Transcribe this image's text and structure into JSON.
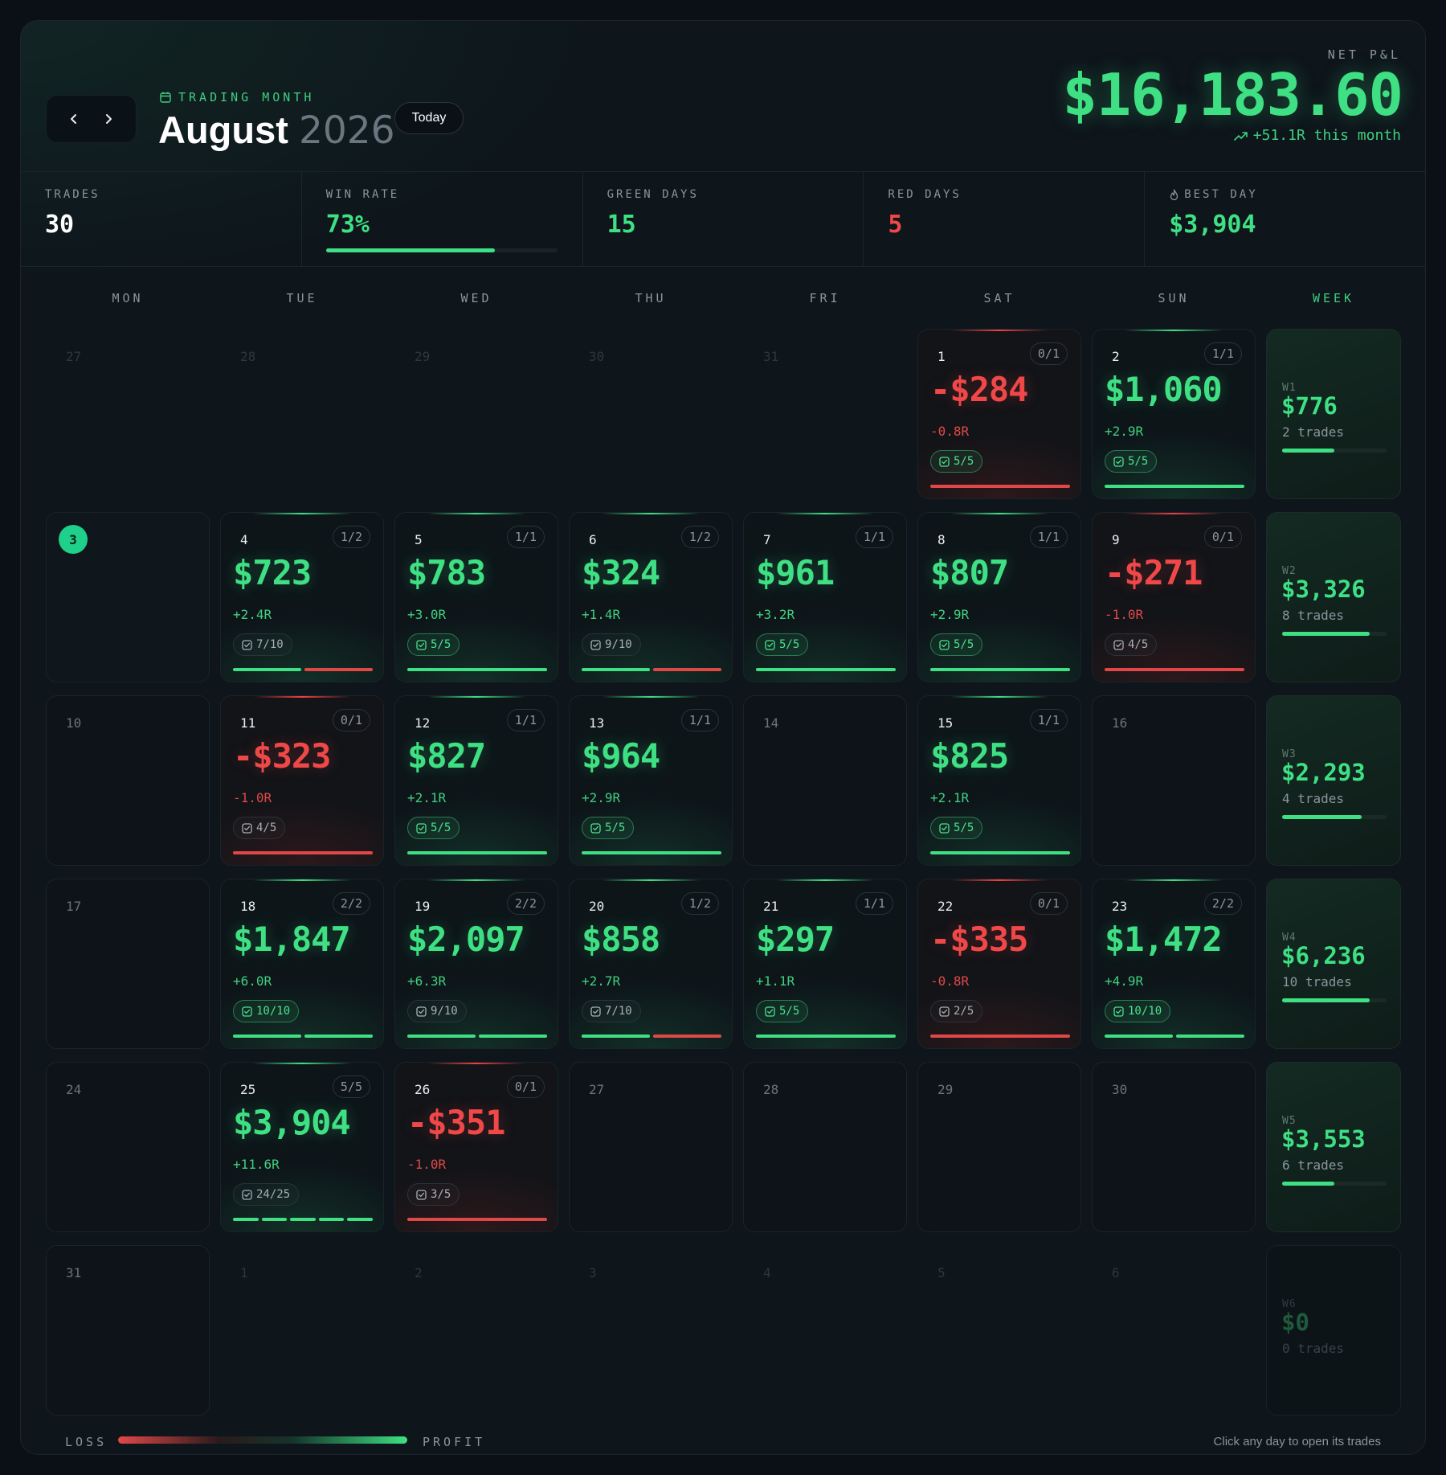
{
  "header": {
    "eyebrow": "TRADING MONTH",
    "month": "August",
    "year": "2026",
    "today_label": "Today",
    "net_label": "NET P&L",
    "net_value": "$16,183.60",
    "net_sub": "+51.1R this month"
  },
  "stats": [
    {
      "label": "TRADES",
      "value": "30",
      "color": "#ffffff"
    },
    {
      "label": "WIN RATE",
      "value": "73%",
      "color": "#3ee083",
      "bar_fraction": 0.73
    },
    {
      "label": "GREEN DAYS",
      "value": "15",
      "color": "#3ee083"
    },
    {
      "label": "RED DAYS",
      "value": "5",
      "color": "#f04848"
    },
    {
      "label": "BEST DAY",
      "value": "$3,904",
      "color": "#3ee083",
      "icon": "flame-icon"
    }
  ],
  "weekdays": [
    "MON",
    "TUE",
    "WED",
    "THU",
    "FRI",
    "SAT",
    "SUN"
  ],
  "week_header": "WEEK",
  "colors": {
    "profit": "#3ee083",
    "loss": "#f04848",
    "accent_today": "#1fd08a"
  },
  "rows": [
    {
      "days": [
        {
          "day": "27",
          "state": "out"
        },
        {
          "day": "28",
          "state": "out"
        },
        {
          "day": "29",
          "state": "out"
        },
        {
          "day": "30",
          "state": "out"
        },
        {
          "day": "31",
          "state": "out"
        },
        {
          "day": "1",
          "state": "loss",
          "ratio": "0/1",
          "pnl": "-$284",
          "r": "-0.8R",
          "chip": "5/5",
          "chip_full": true,
          "segs": [
            "l"
          ]
        },
        {
          "day": "2",
          "state": "win",
          "ratio": "1/1",
          "pnl": "$1,060",
          "r": "+2.9R",
          "chip": "5/5",
          "chip_full": true,
          "segs": [
            "w"
          ]
        }
      ],
      "week": {
        "label": "W1",
        "value": "$776",
        "trades": "2 trades",
        "fraction": 0.5
      }
    },
    {
      "days": [
        {
          "day": "3",
          "state": "today"
        },
        {
          "day": "4",
          "state": "win",
          "ratio": "1/2",
          "pnl": "$723",
          "r": "+2.4R",
          "chip": "7/10",
          "chip_full": false,
          "segs": [
            "w",
            "l"
          ]
        },
        {
          "day": "5",
          "state": "win",
          "ratio": "1/1",
          "pnl": "$783",
          "r": "+3.0R",
          "chip": "5/5",
          "chip_full": true,
          "segs": [
            "w"
          ]
        },
        {
          "day": "6",
          "state": "win",
          "ratio": "1/2",
          "pnl": "$324",
          "r": "+1.4R",
          "chip": "9/10",
          "chip_full": false,
          "segs": [
            "w",
            "l"
          ]
        },
        {
          "day": "7",
          "state": "win",
          "ratio": "1/1",
          "pnl": "$961",
          "r": "+3.2R",
          "chip": "5/5",
          "chip_full": true,
          "segs": [
            "w"
          ]
        },
        {
          "day": "8",
          "state": "win",
          "ratio": "1/1",
          "pnl": "$807",
          "r": "+2.9R",
          "chip": "5/5",
          "chip_full": true,
          "segs": [
            "w"
          ]
        },
        {
          "day": "9",
          "state": "loss",
          "ratio": "0/1",
          "pnl": "-$271",
          "r": "-1.0R",
          "chip": "4/5",
          "chip_full": false,
          "segs": [
            "l"
          ]
        }
      ],
      "week": {
        "label": "W2",
        "value": "$3,326",
        "trades": "8 trades",
        "fraction": 0.84
      }
    },
    {
      "days": [
        {
          "day": "10",
          "state": "empty"
        },
        {
          "day": "11",
          "state": "loss",
          "ratio": "0/1",
          "pnl": "-$323",
          "r": "-1.0R",
          "chip": "4/5",
          "chip_full": false,
          "segs": [
            "l"
          ]
        },
        {
          "day": "12",
          "state": "win",
          "ratio": "1/1",
          "pnl": "$827",
          "r": "+2.1R",
          "chip": "5/5",
          "chip_full": true,
          "segs": [
            "w"
          ]
        },
        {
          "day": "13",
          "state": "win",
          "ratio": "1/1",
          "pnl": "$964",
          "r": "+2.9R",
          "chip": "5/5",
          "chip_full": true,
          "segs": [
            "w"
          ]
        },
        {
          "day": "14",
          "state": "empty"
        },
        {
          "day": "15",
          "state": "win",
          "ratio": "1/1",
          "pnl": "$825",
          "r": "+2.1R",
          "chip": "5/5",
          "chip_full": true,
          "segs": [
            "w"
          ]
        },
        {
          "day": "16",
          "state": "empty"
        }
      ],
      "week": {
        "label": "W3",
        "value": "$2,293",
        "trades": "4 trades",
        "fraction": 0.76
      }
    },
    {
      "days": [
        {
          "day": "17",
          "state": "empty"
        },
        {
          "day": "18",
          "state": "win",
          "ratio": "2/2",
          "pnl": "$1,847",
          "r": "+6.0R",
          "chip": "10/10",
          "chip_full": true,
          "segs": [
            "w",
            "w"
          ]
        },
        {
          "day": "19",
          "state": "win",
          "ratio": "2/2",
          "pnl": "$2,097",
          "r": "+6.3R",
          "chip": "9/10",
          "chip_full": false,
          "segs": [
            "w",
            "w"
          ]
        },
        {
          "day": "20",
          "state": "win",
          "ratio": "1/2",
          "pnl": "$858",
          "r": "+2.7R",
          "chip": "7/10",
          "chip_full": false,
          "segs": [
            "w",
            "l"
          ]
        },
        {
          "day": "21",
          "state": "win",
          "ratio": "1/1",
          "pnl": "$297",
          "r": "+1.1R",
          "chip": "5/5",
          "chip_full": true,
          "segs": [
            "w"
          ]
        },
        {
          "day": "22",
          "state": "loss",
          "ratio": "0/1",
          "pnl": "-$335",
          "r": "-0.8R",
          "chip": "2/5",
          "chip_full": false,
          "segs": [
            "l"
          ]
        },
        {
          "day": "23",
          "state": "win",
          "ratio": "2/2",
          "pnl": "$1,472",
          "r": "+4.9R",
          "chip": "10/10",
          "chip_full": true,
          "segs": [
            "w",
            "w"
          ]
        }
      ],
      "week": {
        "label": "W4",
        "value": "$6,236",
        "trades": "10 trades",
        "fraction": 0.84
      }
    },
    {
      "days": [
        {
          "day": "24",
          "state": "empty"
        },
        {
          "day": "25",
          "state": "win",
          "ratio": "5/5",
          "pnl": "$3,904",
          "r": "+11.6R",
          "chip": "24/25",
          "chip_full": false,
          "segs": [
            "w",
            "w",
            "w",
            "w",
            "w"
          ]
        },
        {
          "day": "26",
          "state": "loss",
          "ratio": "0/1",
          "pnl": "-$351",
          "r": "-1.0R",
          "chip": "3/5",
          "chip_full": false,
          "segs": [
            "l"
          ]
        },
        {
          "day": "27",
          "state": "empty"
        },
        {
          "day": "28",
          "state": "empty"
        },
        {
          "day": "29",
          "state": "empty"
        },
        {
          "day": "30",
          "state": "empty"
        }
      ],
      "week": {
        "label": "W5",
        "value": "$3,553",
        "trades": "6 trades",
        "fraction": 0.5
      }
    },
    {
      "days": [
        {
          "day": "31",
          "state": "empty"
        },
        {
          "day": "1",
          "state": "out"
        },
        {
          "day": "2",
          "state": "out"
        },
        {
          "day": "3",
          "state": "out"
        },
        {
          "day": "4",
          "state": "out"
        },
        {
          "day": "5",
          "state": "out"
        },
        {
          "day": "6",
          "state": "out"
        }
      ],
      "week": {
        "label": "W6",
        "value": "$0",
        "trades": "0 trades",
        "fraction": 0,
        "dim": true
      }
    }
  ],
  "footer": {
    "loss_label": "LOSS",
    "profit_label": "PROFIT",
    "hint": "Click any day to open its trades"
  }
}
